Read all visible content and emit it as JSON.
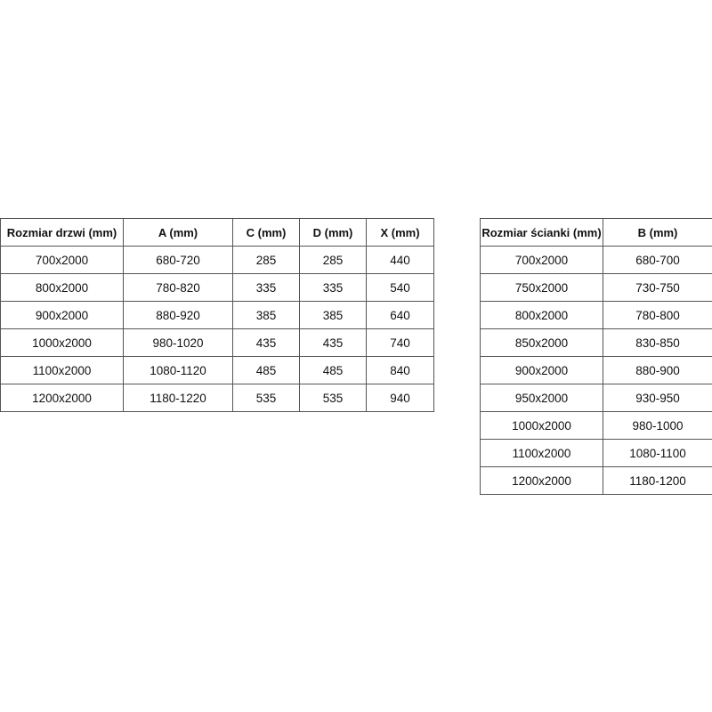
{
  "door_table": {
    "headers": [
      "Rozmiar drzwi (mm)",
      "A (mm)",
      "C (mm)",
      "D (mm)",
      "X (mm)"
    ],
    "rows": [
      [
        "700x2000",
        "680-720",
        "285",
        "285",
        "440"
      ],
      [
        "800x2000",
        "780-820",
        "335",
        "335",
        "540"
      ],
      [
        "900x2000",
        "880-920",
        "385",
        "385",
        "640"
      ],
      [
        "1000x2000",
        "980-1020",
        "435",
        "435",
        "740"
      ],
      [
        "1100x2000",
        "1080-1120",
        "485",
        "485",
        "840"
      ],
      [
        "1200x2000",
        "1180-1220",
        "535",
        "535",
        "940"
      ]
    ]
  },
  "wall_table": {
    "headers": [
      "Rozmiar ścianki (mm)",
      "B (mm)"
    ],
    "rows": [
      [
        "700x2000",
        "680-700"
      ],
      [
        "750x2000",
        "730-750"
      ],
      [
        "800x2000",
        "780-800"
      ],
      [
        "850x2000",
        "830-850"
      ],
      [
        "900x2000",
        "880-900"
      ],
      [
        "950x2000",
        "930-950"
      ],
      [
        "1000x2000",
        "980-1000"
      ],
      [
        "1100x2000",
        "1080-1100"
      ],
      [
        "1200x2000",
        "1180-1200"
      ]
    ]
  }
}
